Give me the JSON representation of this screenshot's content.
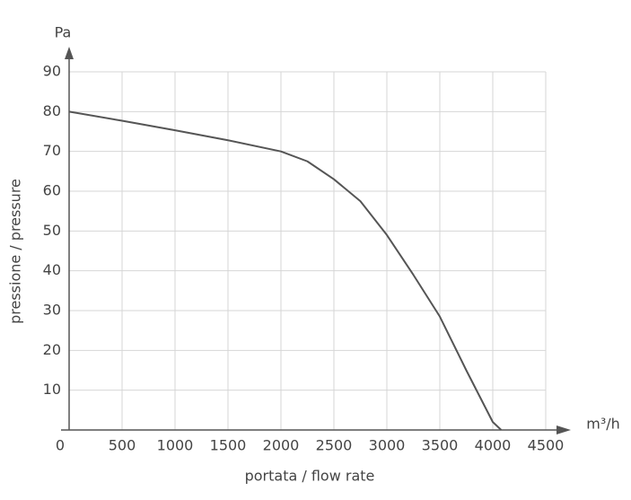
{
  "chart_data": {
    "type": "line",
    "y_unit": "Pa",
    "x_unit": "m³/h",
    "y_label": "pressione / pressure",
    "x_label": "portata / flow rate",
    "x": [
      0,
      500,
      1000,
      1500,
      2000,
      2250,
      2500,
      2750,
      3000,
      3250,
      3500,
      3750,
      4000,
      4080
    ],
    "series": [
      {
        "name": "curve",
        "color": "#555555",
        "values": [
          80,
          77.7,
          75.3,
          72.8,
          70,
          67.5,
          63,
          57.5,
          49,
          39,
          28.5,
          15,
          2,
          0
        ]
      }
    ],
    "xlim": [
      0,
      4500
    ],
    "ylim": [
      0,
      90
    ],
    "xticks": [
      0,
      500,
      1000,
      1500,
      2000,
      2500,
      3000,
      3500,
      4000,
      4500
    ],
    "yticks": [
      10,
      20,
      30,
      40,
      50,
      60,
      70,
      80,
      90
    ],
    "grid": true
  }
}
